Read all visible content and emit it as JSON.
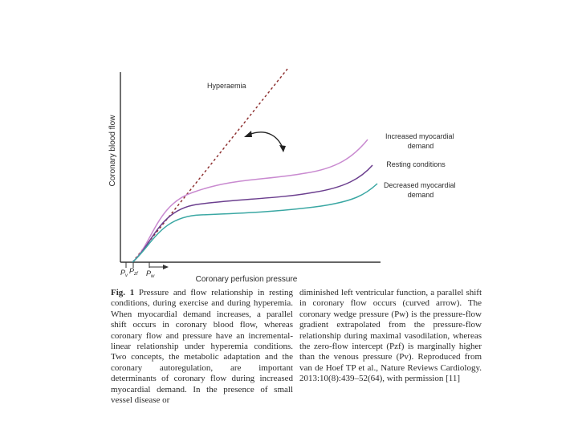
{
  "figure": {
    "ylabel": "Coronary blood flow",
    "xlabel": "Coronary perfusion pressure",
    "hyperaemia_label": "Hyperaemia",
    "curve_labels": {
      "increased": [
        "Increased myocardial",
        "demand"
      ],
      "resting": [
        "Resting conditions"
      ],
      "decreased": [
        "Decreased myocardial",
        "demand"
      ]
    },
    "axis_marks": {
      "pv": "P",
      "pv_sub": "v",
      "pzf": "P",
      "pzf_sub": "zf",
      "pw": "P",
      "pw_sub": "w"
    },
    "colors": {
      "increased": "#c98ad0",
      "resting": "#6b3e8e",
      "decreased": "#3aa7a3",
      "hyperaemia": "#8a2a2a",
      "arrow": "#222222",
      "axis": "#333333"
    }
  },
  "caption": {
    "fig_label": "Fig. 1",
    "col_left": "Pressure and flow relationship in resting conditions, during exercise and during hyperemia. When myocardial demand increases, a parallel shift occurs in coronary blood flow, whereas coronary flow and pressure have an incremental-linear relationship under hyperemia conditions. Two concepts, the metabolic adaptation and the coronary autoregulation, are important determinants of coronary flow during increased myocardial demand. In the presence of small vessel disease or",
    "col_right": "diminished left ventricular function, a parallel shift in coronary flow occurs (curved arrow). The coronary wedge pressure (Pw) is the pressure-flow gradient extrapolated from the pressure-flow relationship during maximal vasodilation, whereas the zero-flow intercept (Pzf) is marginally higher than the venous pressure (Pv). Reproduced from van de Hoef TP et al., Nature Reviews Cardiology. 2013:10(8):439–52(64), with permission [11]"
  }
}
